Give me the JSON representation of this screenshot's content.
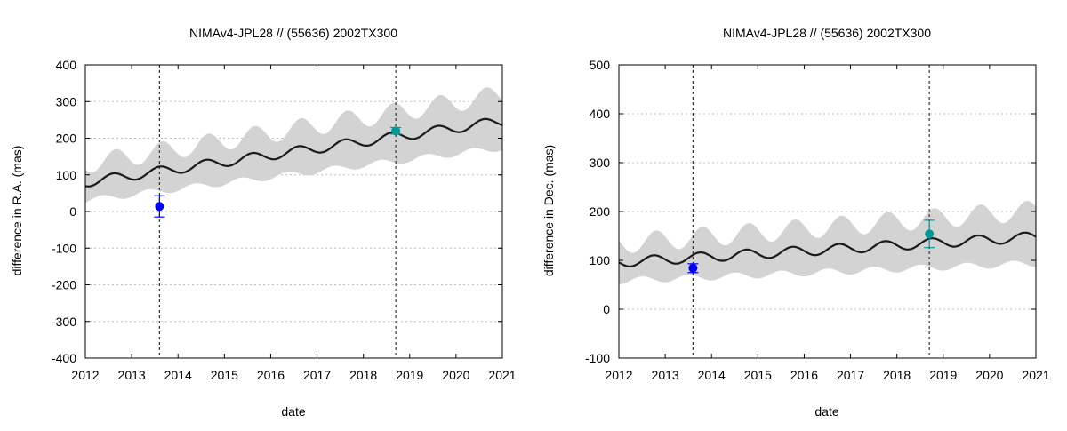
{
  "chart_data": [
    {
      "type": "line",
      "title": "NIMAv4-JPL28 // (55636) 2002TX300",
      "xlabel": "date",
      "ylabel": "difference in R.A. (mas)",
      "xlim": [
        2012,
        2021
      ],
      "ylim": [
        -400,
        400
      ],
      "xticks": [
        2012,
        2013,
        2014,
        2015,
        2016,
        2017,
        2018,
        2019,
        2020,
        2021
      ],
      "yticks": [
        -400,
        -300,
        -200,
        -100,
        0,
        100,
        200,
        300,
        400
      ],
      "xtick_labels": [
        "2012",
        "2013",
        "2014",
        "2015",
        "2016",
        "2017",
        "2018",
        "2019",
        "2020",
        "2021"
      ],
      "ytick_labels": [
        "-400",
        "-300",
        "-200",
        "-100",
        "0",
        "100",
        "200",
        "300",
        "400"
      ],
      "grid": "horizontal dotted",
      "vlines": [
        2013.6,
        2018.7
      ],
      "trend": {
        "base_start": 80,
        "slope_per_year": 18.5,
        "amplitude": 13,
        "period_years": 1.0,
        "phase_peak": 2012.6
      },
      "band": {
        "width_start": 50,
        "width_growth_per_year": 2.5,
        "width_wobble": 15
      },
      "points": [
        {
          "name": "observation-2013",
          "x": 2013.6,
          "y": 14,
          "yerr": 29,
          "color": "#0000ee"
        },
        {
          "name": "observation-2018",
          "x": 2018.7,
          "y": 220,
          "yerr": 9,
          "color": "#009999"
        }
      ]
    },
    {
      "type": "line",
      "title": "NIMAv4-JPL28 // (55636) 2002TX300",
      "xlabel": "date",
      "ylabel": "difference in Dec. (mas)",
      "xlim": [
        2012,
        2021
      ],
      "ylim": [
        -100,
        500
      ],
      "xticks": [
        2012,
        2013,
        2014,
        2015,
        2016,
        2017,
        2018,
        2019,
        2020,
        2021
      ],
      "yticks": [
        -100,
        0,
        100,
        200,
        300,
        400,
        500
      ],
      "xtick_labels": [
        "2012",
        "2013",
        "2014",
        "2015",
        "2016",
        "2017",
        "2018",
        "2019",
        "2020",
        "2021"
      ],
      "ytick_labels": [
        "-100",
        "0",
        "100",
        "200",
        "300",
        "400",
        "500"
      ],
      "grid": "horizontal dotted",
      "vlines": [
        2013.6,
        2018.7
      ],
      "trend": {
        "base_start": 96,
        "slope_per_year": 5.8,
        "amplitude": 10,
        "period_years": 1.0,
        "phase_peak": 2012.75
      },
      "band": {
        "width_start": 38,
        "width_growth_per_year": 1.8,
        "width_wobble": 12
      },
      "points": [
        {
          "name": "observation-2013",
          "x": 2013.6,
          "y": 84,
          "yerr": 9,
          "color": "#0000ee"
        },
        {
          "name": "observation-2018",
          "x": 2018.7,
          "y": 154,
          "yerr": 28,
          "color": "#009999"
        }
      ]
    }
  ]
}
